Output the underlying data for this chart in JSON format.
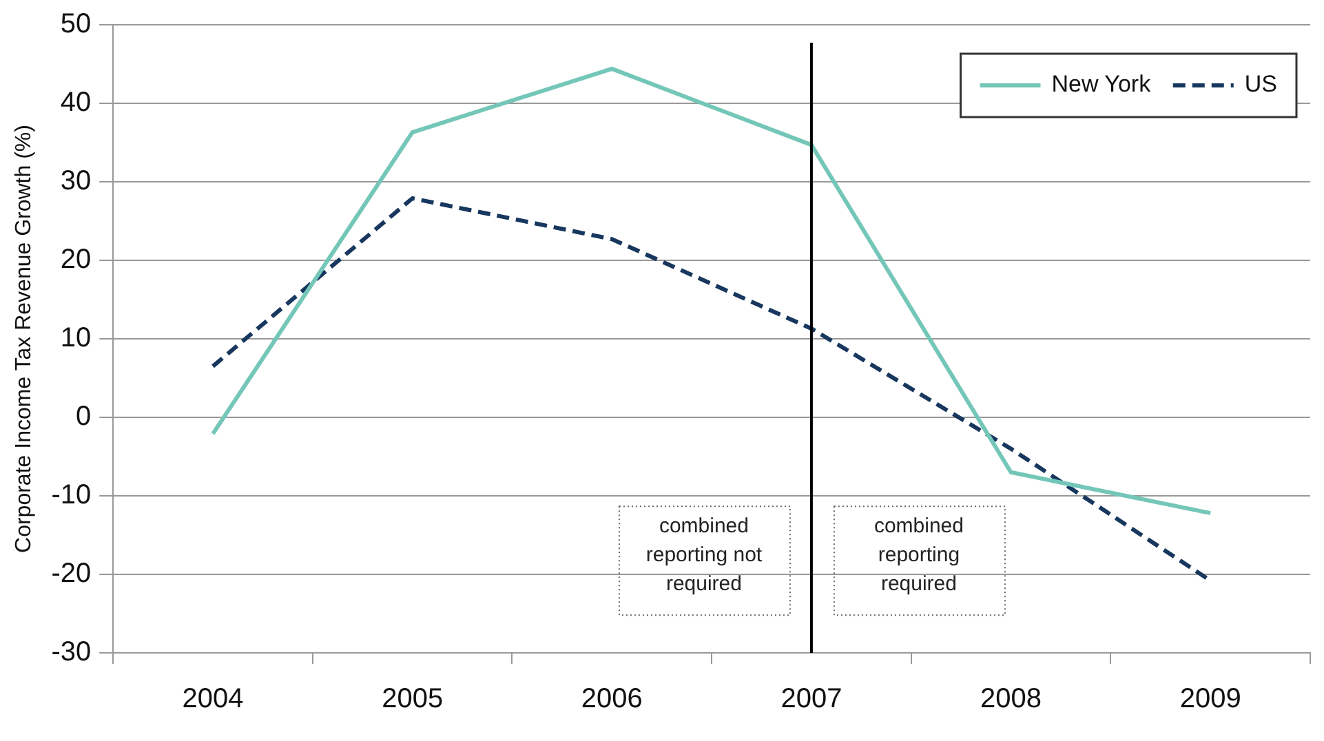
{
  "chart_data": {
    "type": "line",
    "ylabel": "Corporate Income Tax Revenue Growth (%)",
    "categories": [
      "2004",
      "2005",
      "2006",
      "2007",
      "2008",
      "2009"
    ],
    "series": [
      {
        "name": "New York",
        "color": "#74c7b8",
        "line_style": "solid",
        "values": [
          -2.1,
          36.3,
          44.4,
          34.7,
          -7,
          -12.2
        ]
      },
      {
        "name": "US",
        "color": "#17375e",
        "line_style": "dashed",
        "values": [
          6.5,
          27.9,
          22.7,
          11.3,
          -4,
          -20.8
        ]
      }
    ],
    "ylim": [
      -30,
      50
    ],
    "yticks": [
      -30,
      -20,
      -10,
      0,
      10,
      20,
      30,
      40,
      50
    ],
    "grid": "y",
    "legend": "top right",
    "marker": "none",
    "ref_lines": [
      {
        "axis": "x",
        "value": "2007",
        "color": "#000000"
      }
    ],
    "annotations": [
      "combined reporting not required",
      "combined reporting required"
    ]
  }
}
